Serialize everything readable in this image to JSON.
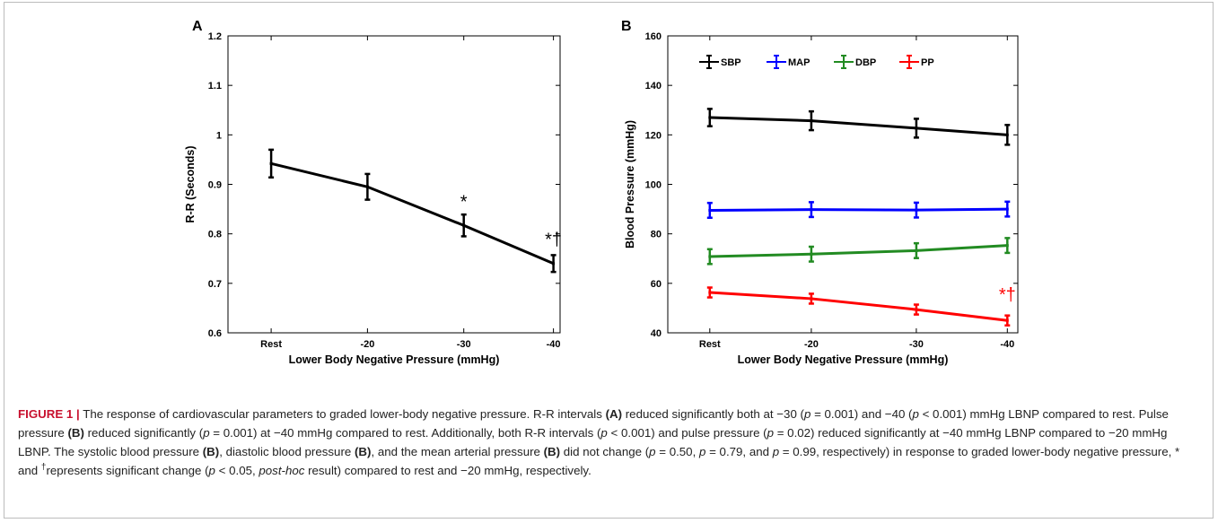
{
  "chart_data": [
    {
      "type": "line",
      "panel_label": "A",
      "categories": [
        "Rest",
        "-20",
        "-30",
        "-40"
      ],
      "xlabel": "Lower Body Negative Pressure (mmHg)",
      "ylabel": "R-R (Seconds)",
      "ylim": [
        0.6,
        1.2
      ],
      "yticks": [
        0.6,
        0.7,
        0.8,
        0.9,
        1,
        1.1,
        1.2
      ],
      "ytick_labels": [
        "0.6",
        "0.7",
        "0.8",
        "0.9",
        "1",
        "1.1",
        "1.2"
      ],
      "series": [
        {
          "color": "#000000",
          "values": [
            0.942,
            0.895,
            0.817,
            0.74
          ],
          "errors": [
            0.028,
            0.026,
            0.022,
            0.017
          ]
        }
      ],
      "annotations": [
        {
          "text": "*",
          "category": "-30",
          "y": 0.853,
          "color": "#000000"
        },
        {
          "text": "*†",
          "category": "-40",
          "y": 0.777,
          "color": "#000000"
        }
      ]
    },
    {
      "type": "line",
      "panel_label": "B",
      "categories": [
        "Rest",
        "-20",
        "-30",
        "-40"
      ],
      "xlabel": "Lower Body Negative Pressure (mmHg)",
      "ylabel": "Blood Pressure (mmHg)",
      "ylim": [
        40,
        160
      ],
      "yticks": [
        40,
        60,
        80,
        100,
        120,
        140,
        160
      ],
      "ytick_labels": [
        "40",
        "60",
        "80",
        "100",
        "120",
        "140",
        "160"
      ],
      "legend_position": "top",
      "series": [
        {
          "name": "SBP",
          "color": "#000000",
          "values": [
            127,
            125.7,
            122.7,
            120
          ],
          "errors": [
            3.5,
            3.8,
            3.8,
            4
          ]
        },
        {
          "name": "MAP",
          "color": "#0000ff",
          "values": [
            89.5,
            89.8,
            89.6,
            90
          ],
          "errors": [
            3,
            3,
            3,
            3
          ]
        },
        {
          "name": "DBP",
          "color": "#228b22",
          "values": [
            70.8,
            71.8,
            73.2,
            75.3
          ],
          "errors": [
            3,
            3,
            3,
            3
          ]
        },
        {
          "name": "PP",
          "color": "#ff0000",
          "values": [
            56.3,
            53.8,
            49.4,
            45
          ],
          "errors": [
            2,
            2,
            2,
            2
          ]
        }
      ],
      "annotations": [
        {
          "text": "*†",
          "category": "-40",
          "y": 53,
          "color": "#ff0000"
        }
      ]
    }
  ],
  "caption": {
    "figure_label": "FIGURE 1 |",
    "segments": [
      {
        "t": " The response of cardiovascular parameters to graded lower-body negative pressure. R-R intervals "
      },
      {
        "t": "(A)",
        "b": true
      },
      {
        "t": " reduced significantly both at −30 ("
      },
      {
        "t": "p",
        "i": true
      },
      {
        "t": " = 0.001) and −40 ("
      },
      {
        "t": "p",
        "i": true
      },
      {
        "t": " < 0.001) mmHg LBNP compared to rest. Pulse pressure "
      },
      {
        "t": "(B)",
        "b": true
      },
      {
        "t": " reduced significantly ("
      },
      {
        "t": "p",
        "i": true
      },
      {
        "t": " = 0.001) at −40 mmHg compared to rest. Additionally, both R-R intervals ("
      },
      {
        "t": "p",
        "i": true
      },
      {
        "t": " < 0.001) and pulse pressure ("
      },
      {
        "t": "p",
        "i": true
      },
      {
        "t": " = 0.02) reduced significantly at −40 mmHg LBNP compared to −20 mmHg LBNP. The systolic blood pressure "
      },
      {
        "t": "(B)",
        "b": true
      },
      {
        "t": ", diastolic blood pressure "
      },
      {
        "t": "(B)",
        "b": true
      },
      {
        "t": ", and the mean arterial pressure "
      },
      {
        "t": "(B)",
        "b": true
      },
      {
        "t": " did not change ("
      },
      {
        "t": "p",
        "i": true
      },
      {
        "t": " = 0.50, "
      },
      {
        "t": "p",
        "i": true
      },
      {
        "t": " = 0.79, and "
      },
      {
        "t": "p",
        "i": true
      },
      {
        "t": " = 0.99, respectively) in response to graded lower-body negative pressure, * and "
      },
      {
        "t": "†",
        "sup": true
      },
      {
        "t": "represents significant change ("
      },
      {
        "t": "p",
        "i": true
      },
      {
        "t": " < 0.05, "
      },
      {
        "t": "post-hoc",
        "i": true
      },
      {
        "t": " result) compared to rest and −20 mmHg, respectively."
      }
    ]
  }
}
